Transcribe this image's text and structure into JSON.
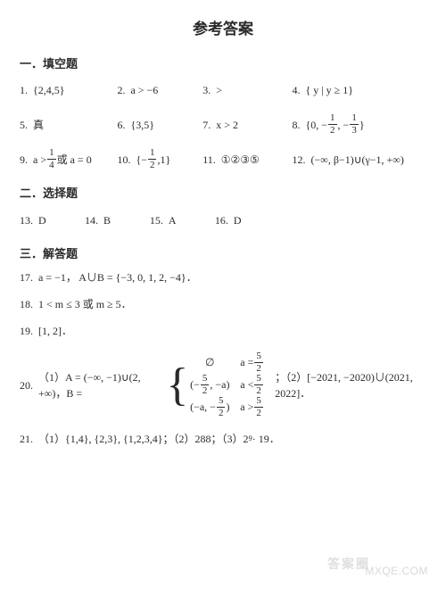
{
  "title": "参考答案",
  "sections": {
    "fill": {
      "head": "一．填空题"
    },
    "choice": {
      "head": "二．选择题"
    },
    "solve": {
      "head": "三．解答题"
    }
  },
  "fill": [
    {
      "n": "1.",
      "a": "{2,4,5}"
    },
    {
      "n": "2.",
      "a": "a > −6"
    },
    {
      "n": "3.",
      "a": ">"
    },
    {
      "n": "4.",
      "a": "{ y | y ≥ 1}"
    },
    {
      "n": "5.",
      "a": "真"
    },
    {
      "n": "6.",
      "a": "{3,5}"
    },
    {
      "n": "7.",
      "a": "x > 2"
    },
    {
      "n": "8.",
      "pre": "{0, −",
      "f1n": "1",
      "f1d": "2",
      "mid": ", −",
      "f2n": "1",
      "f2d": "3",
      "post": "}"
    },
    {
      "n": "9.",
      "pre": "a > ",
      "f1n": "1",
      "f1d": "4",
      "post": " 或 a = 0"
    },
    {
      "n": "10.",
      "pre": "{−",
      "f1n": "1",
      "f1d": "2",
      "post": ",1}"
    },
    {
      "n": "11.",
      "a": "①②③⑤"
    },
    {
      "n": "12.",
      "a": "(−∞, β−1)∪(γ−1, +∞)"
    }
  ],
  "choice": [
    {
      "n": "13.",
      "a": "D"
    },
    {
      "n": "14.",
      "a": "B"
    },
    {
      "n": "15.",
      "a": "A"
    },
    {
      "n": "16.",
      "a": "D"
    }
  ],
  "solve": {
    "q17": {
      "n": "17.",
      "a": "a = −1， A∪B = {−3, 0, 1, 2, −4}．"
    },
    "q18": {
      "n": "18.",
      "a": "1 < m ≤ 3 或 m ≥ 5．"
    },
    "q19": {
      "n": "19.",
      "a": "[1, 2]．"
    },
    "q20": {
      "n": "20.",
      "left": "（1）A = (−∞, −1)∪(2, +∞)，B = ",
      "case1": {
        "l": "∅",
        "r_pre": "a = ",
        "r_fn": "5",
        "r_fd": "2"
      },
      "case2": {
        "l_pre": "(−",
        "l_fn": "5",
        "l_fd": "2",
        "l_mid": ", −a)",
        "r_pre": "a < ",
        "r_fn": "5",
        "r_fd": "2"
      },
      "case3": {
        "l_pre": "(−a, −",
        "l_fn": "5",
        "l_fd": "2",
        "l_post": ")",
        "r_pre": "a > ",
        "r_fn": "5",
        "r_fd": "2"
      },
      "right": "；（2）[−2021, −2020)∪(2021, 2022]．"
    },
    "q21": {
      "n": "21.",
      "p1": "（1）{1,4}, {2,3}, {1,2,3,4}；（2）288；（3）2",
      "sup": "9",
      "p2": " · 19．"
    }
  },
  "watermark": {
    "w1": "答案圈",
    "w2": "MXQE.COM"
  }
}
